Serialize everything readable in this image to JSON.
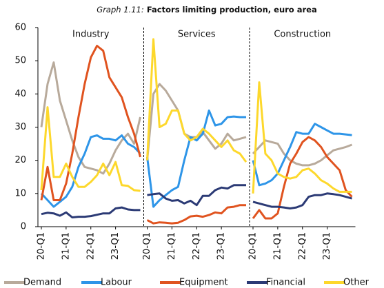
{
  "title_prefix": "Graph 1.11:",
  "title": "Factors limiting production, euro area",
  "chart_data": [
    {
      "type": "line",
      "title": "Industry",
      "categories": [
        "20-Q1",
        null,
        null,
        null,
        "21-Q1",
        null,
        null,
        null,
        "22-Q1",
        null,
        null,
        null,
        "23-Q1",
        null,
        null,
        null,
        null
      ],
      "ylim": [
        0,
        60
      ],
      "yticks": [
        0,
        10,
        20,
        30,
        40,
        50,
        60
      ],
      "series": [
        {
          "name": "Demand",
          "color": "#b8aa9b",
          "values": [
            30,
            43,
            49.5,
            38,
            32,
            26,
            21,
            18,
            17.5,
            17,
            16,
            19,
            23,
            26,
            28,
            25,
            33
          ]
        },
        {
          "name": "Labour",
          "color": "#2e95e8",
          "values": [
            10,
            8,
            6,
            7.5,
            9,
            12,
            18,
            22,
            27,
            27.5,
            26.5,
            26.5,
            26,
            27.5,
            25,
            24,
            22
          ]
        },
        {
          "name": "Equipment",
          "color": "#e0531f",
          "values": [
            8,
            18,
            8,
            8,
            13,
            22,
            33,
            43,
            51,
            54.5,
            53,
            45,
            42,
            39,
            33,
            28,
            21
          ]
        },
        {
          "name": "Financial",
          "color": "#2b3a75",
          "values": [
            3.8,
            4.2,
            4,
            3.3,
            4.3,
            2.8,
            3,
            3,
            3.2,
            3.6,
            4,
            4,
            5.5,
            5.8,
            5.2,
            5,
            5
          ]
        },
        {
          "name": "Other",
          "color": "#fdd82c",
          "values": [
            11,
            36,
            15,
            15,
            19,
            15,
            12,
            12,
            13.5,
            15.5,
            19,
            15.5,
            19.5,
            12.5,
            12.3,
            11,
            10.8
          ]
        }
      ]
    },
    {
      "type": "line",
      "title": "Services",
      "categories": [
        "20-Q1",
        null,
        null,
        null,
        "21-Q1",
        null,
        null,
        null,
        "22-Q1",
        null,
        null,
        null,
        "23-Q1",
        null,
        null,
        null,
        null
      ],
      "ylim": [
        0,
        60
      ],
      "series": [
        {
          "name": "Demand",
          "color": "#b8aa9b",
          "values": [
            20,
            40,
            43,
            41,
            38,
            35,
            28,
            27,
            27,
            28.5,
            26,
            23.5,
            25,
            28,
            26,
            26.5,
            27
          ]
        },
        {
          "name": "Labour",
          "color": "#2e95e8",
          "values": [
            21,
            6,
            8,
            9.5,
            11,
            12,
            20,
            27,
            26,
            28,
            35,
            30.5,
            31,
            33,
            33.2,
            33,
            33
          ]
        },
        {
          "name": "Equipment",
          "color": "#e0531f",
          "values": [
            2,
            1,
            1.3,
            1.2,
            1,
            1.2,
            2,
            3.1,
            3.3,
            3,
            3.5,
            4.3,
            4,
            5.8,
            6,
            6.5,
            6.5
          ]
        },
        {
          "name": "Financial",
          "color": "#2b3a75",
          "values": [
            9.5,
            9.8,
            10,
            8.5,
            7.8,
            8,
            7,
            7.8,
            6.5,
            9.3,
            9.3,
            11,
            11.8,
            11.5,
            12.5,
            12.5,
            12.5
          ]
        },
        {
          "name": "Other",
          "color": "#fdd82c",
          "values": [
            20,
            56.5,
            30,
            31,
            35,
            35,
            28,
            26,
            27,
            29.5,
            28,
            26,
            24,
            26,
            23,
            22,
            19.5
          ]
        }
      ]
    },
    {
      "type": "line",
      "title": "Construction",
      "categories": [
        "20-Q1",
        null,
        null,
        null,
        "21-Q1",
        null,
        null,
        null,
        "22-Q1",
        null,
        null,
        null,
        "23-Q1",
        null,
        null,
        null,
        null
      ],
      "ylim": [
        0,
        60
      ],
      "series": [
        {
          "name": "Demand",
          "color": "#b8aa9b",
          "values": [
            22,
            24,
            26,
            25.5,
            25,
            22,
            20,
            19,
            18.5,
            18.5,
            19,
            20,
            21.5,
            23,
            23.5,
            24,
            24.7
          ]
        },
        {
          "name": "Labour",
          "color": "#2e95e8",
          "values": [
            20,
            12.5,
            13,
            14,
            16,
            20,
            24,
            28.5,
            28,
            28,
            31,
            30,
            29,
            28,
            28,
            27.8,
            27.6
          ]
        },
        {
          "name": "Equipment",
          "color": "#e0531f",
          "values": [
            2.5,
            5,
            2.5,
            2.5,
            4,
            12,
            19,
            22,
            25.5,
            27,
            26,
            24,
            21,
            19,
            17,
            11,
            9
          ]
        },
        {
          "name": "Financial",
          "color": "#2b3a75",
          "values": [
            7.5,
            7,
            6.5,
            6,
            6,
            5.8,
            5.5,
            5.8,
            6.5,
            9,
            9.5,
            9.5,
            10,
            9.8,
            9.5,
            9,
            8.5
          ]
        },
        {
          "name": "Other",
          "color": "#fdd82c",
          "values": [
            10,
            43.5,
            22,
            20,
            16,
            15,
            14.5,
            15,
            17,
            17.5,
            16,
            14,
            13,
            11.5,
            10.5,
            10.5,
            10.5
          ]
        }
      ]
    }
  ]
}
